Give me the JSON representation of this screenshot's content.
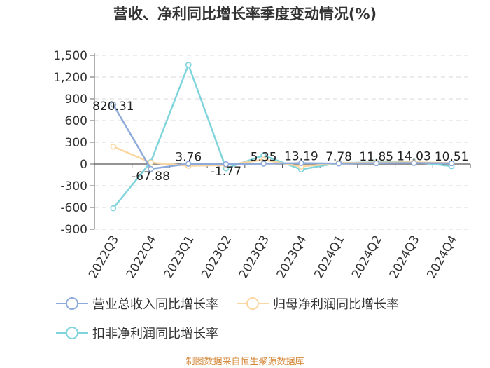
{
  "chart_data": {
    "type": "line",
    "title": "营收、净利同比增长率季度变动情况(%)",
    "categories": [
      "2022Q3",
      "2022Q4",
      "2023Q1",
      "2023Q2",
      "2023Q3",
      "2023Q4",
      "2024Q1",
      "2024Q2",
      "2024Q3",
      "2024Q4"
    ],
    "y_ticks": [
      "1,500",
      "1,200",
      "900",
      "600",
      "300",
      "0",
      "-300",
      "-600",
      "-900"
    ],
    "ylim": [
      -900,
      1500
    ],
    "grid": true,
    "legend_position": "bottom",
    "series": [
      {
        "name": "营业总收入同比增长率",
        "color": "#8eaadb",
        "values": [
          820.31,
          -67.88,
          3.76,
          -1.77,
          5.35,
          13.19,
          7.78,
          11.85,
          14.03,
          10.51
        ],
        "labels": [
          "820.31",
          "-67.88",
          "3.76",
          "-1.77",
          "5.35",
          "13.19",
          "7.78",
          "11.85",
          "14.03",
          "10.51"
        ]
      },
      {
        "name": "归母净利润同比增长率",
        "color": "#fad7a0",
        "values": [
          240,
          20,
          -25,
          -15,
          60,
          -35,
          15,
          20,
          25,
          15
        ]
      },
      {
        "name": "扣非净利润同比增长率",
        "color": "#80d4dc",
        "values": [
          -610,
          30,
          1370,
          -60,
          120,
          -75,
          15,
          25,
          30,
          -30
        ]
      }
    ]
  },
  "source_note": "制图数据来自恒生聚源数据库"
}
